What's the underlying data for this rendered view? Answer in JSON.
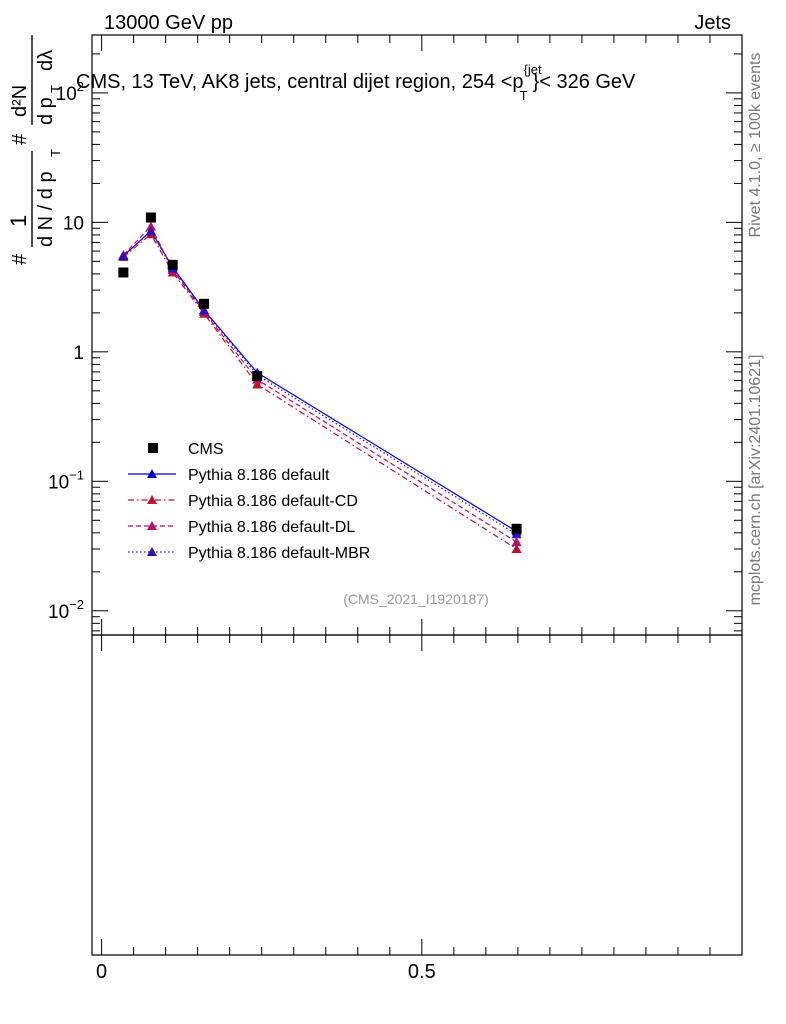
{
  "header": {
    "left": "13000 GeV pp",
    "right": "Jets"
  },
  "side": {
    "rivet": "Rivet 4.1.0, ≥ 100k events",
    "mcplots": "mcplots.cern.ch [arXiv:2401.10621]"
  },
  "chart_data": {
    "type": "line",
    "title": "CMS, 13 TeV, AK8 jets, central dijet region, 254 <p_T^{jet}< 326 GeV",
    "title_parts": {
      "main": "CMS, 13 TeV, AK8 jets, central dijet region, 254 <p",
      "sup": "{jet",
      "sub": "T",
      "tail": "}< 326 GeV"
    },
    "watermark": "(CMS_2021_I1920187)",
    "yscale": "log",
    "ylim": [
      0.0065,
      280
    ],
    "xlim": [
      -0.015,
      1.0
    ],
    "ylabel_parts": {
      "hash1": "#",
      "one": "1",
      "dn": "d N / d p",
      "sub1": "T",
      "hash2": "#",
      "d2n": "d²N",
      "dpt": "d p",
      "sub2": "T",
      "dlambda": "dλ"
    },
    "y_ticks": [
      {
        "value": 100,
        "base": "10",
        "exp": "2"
      },
      {
        "value": 10,
        "base": "10",
        "exp": ""
      },
      {
        "value": 1,
        "base": "1",
        "exp": ""
      },
      {
        "value": 0.1,
        "base": "10",
        "exp": "−1"
      },
      {
        "value": 0.01,
        "base": "10",
        "exp": "−2"
      }
    ],
    "x_ticks": [
      {
        "value": 0,
        "label": "0"
      },
      {
        "value": 0.5,
        "label": "0.5"
      }
    ],
    "data": {
      "name": "CMS",
      "x": [
        0.034,
        0.077,
        0.111,
        0.16,
        0.243,
        0.648
      ],
      "y": [
        4.1,
        10.9,
        4.7,
        2.35,
        0.65,
        0.043
      ]
    },
    "series": [
      {
        "name": "Pythia 8.186 default",
        "color": "#0000d8",
        "dash": "solid",
        "x": [
          0.034,
          0.077,
          0.111,
          0.16,
          0.243,
          0.648
        ],
        "y": [
          5.5,
          8.6,
          4.5,
          2.1,
          0.69,
          0.041
        ]
      },
      {
        "name": "Pythia 8.186 default-CD",
        "color": "#c0102a",
        "dash": "dashdot",
        "x": [
          0.034,
          0.077,
          0.111,
          0.16,
          0.243,
          0.648
        ],
        "y": [
          5.4,
          8.1,
          4.1,
          1.97,
          0.56,
          0.03
        ]
      },
      {
        "name": "Pythia 8.186 default-DL",
        "color": "#b8106a",
        "dash": "dashed",
        "x": [
          0.034,
          0.077,
          0.111,
          0.16,
          0.243,
          0.648
        ],
        "y": [
          5.6,
          9.3,
          4.3,
          2.03,
          0.61,
          0.034
        ]
      },
      {
        "name": "Pythia 8.186 default-MBR",
        "color": "#3010b8",
        "dash": "dotted",
        "x": [
          0.034,
          0.077,
          0.111,
          0.16,
          0.243,
          0.648
        ],
        "y": [
          5.5,
          8.5,
          4.4,
          2.08,
          0.66,
          0.039
        ]
      }
    ],
    "legend": "top-left"
  }
}
